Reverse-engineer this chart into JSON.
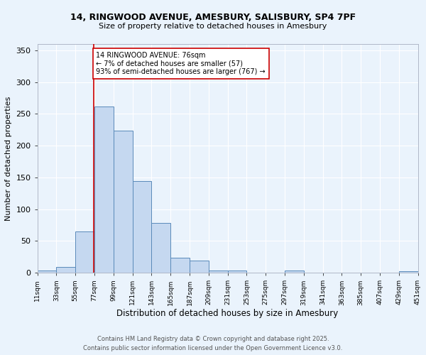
{
  "title_line1": "14, RINGWOOD AVENUE, AMESBURY, SALISBURY, SP4 7PF",
  "title_line2": "Size of property relative to detached houses in Amesbury",
  "xlabel": "Distribution of detached houses by size in Amesbury",
  "ylabel": "Number of detached properties",
  "bin_labels": [
    "11sqm",
    "33sqm",
    "55sqm",
    "77sqm",
    "99sqm",
    "121sqm",
    "143sqm",
    "165sqm",
    "187sqm",
    "209sqm",
    "231sqm",
    "253sqm",
    "275sqm",
    "297sqm",
    "319sqm",
    "341sqm",
    "363sqm",
    "385sqm",
    "407sqm",
    "429sqm",
    "451sqm"
  ],
  "bin_edges": [
    11,
    33,
    55,
    77,
    99,
    121,
    143,
    165,
    187,
    209,
    231,
    253,
    275,
    297,
    319,
    341,
    363,
    385,
    407,
    429,
    451
  ],
  "bar_heights": [
    3,
    9,
    65,
    262,
    224,
    144,
    78,
    24,
    19,
    4,
    4,
    0,
    0,
    3,
    0,
    0,
    0,
    0,
    0,
    2
  ],
  "bar_color": "#c5d8f0",
  "bar_edge_color": "#5a8aba",
  "vline_x": 76,
  "vline_color": "#cc0000",
  "annotation_text": "14 RINGWOOD AVENUE: 76sqm\n← 7% of detached houses are smaller (57)\n93% of semi-detached houses are larger (767) →",
  "ylim": [
    0,
    360
  ],
  "yticks": [
    0,
    50,
    100,
    150,
    200,
    250,
    300,
    350
  ],
  "background_color": "#eaf3fc",
  "grid_color": "#ffffff",
  "footer_line1": "Contains HM Land Registry data © Crown copyright and database right 2025.",
  "footer_line2": "Contains public sector information licensed under the Open Government Licence v3.0."
}
